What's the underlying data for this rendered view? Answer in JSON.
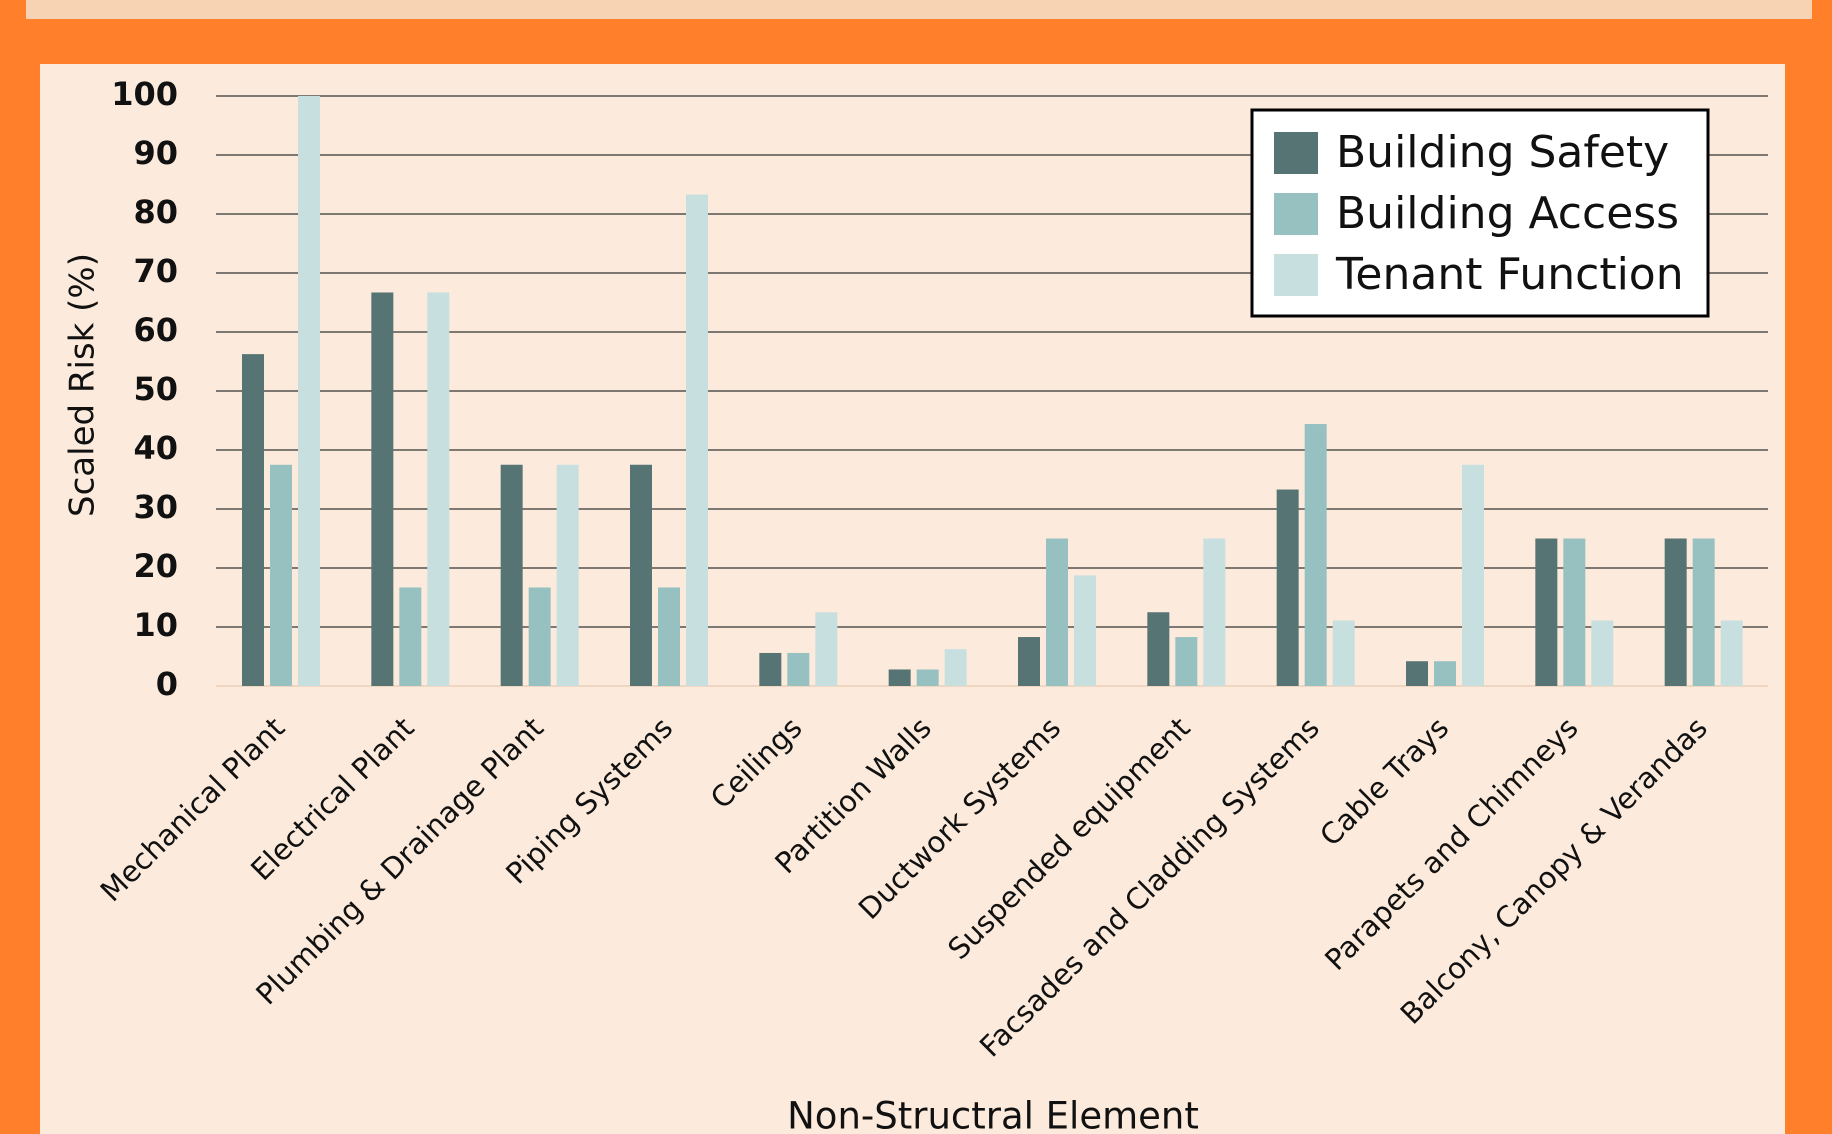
{
  "chart_data": {
    "type": "bar",
    "x_label": "Non-Structral Element",
    "y_label": "Scaled Risk (%)",
    "categories": [
      "Mechanical Plant",
      "Electrical Plant",
      "Plumbing & Drainage Plant",
      "Piping Systems",
      "Ceilings",
      "Partition Walls",
      "Ductwork Systems",
      "Suspended equipment",
      "Facsades and Cladding Systems",
      "Cable Trays",
      "Parapets and Chimneys",
      "Balcony, Canopy & Verandas"
    ],
    "series": [
      {
        "name": "Building Safety",
        "color": "#577474",
        "values": [
          56.25,
          66.7,
          37.5,
          37.5,
          5.6,
          2.8,
          8.3,
          12.5,
          33.3,
          4.2,
          25,
          25
        ]
      },
      {
        "name": "Building Access",
        "color": "#97c1c1",
        "values": [
          37.5,
          16.7,
          16.7,
          16.7,
          5.6,
          2.8,
          25,
          8.3,
          44.4,
          4.2,
          25,
          25
        ]
      },
      {
        "name": "Tenant Function",
        "color": "#c8dfdf",
        "values": [
          100,
          66.7,
          37.5,
          83.3,
          12.5,
          6.25,
          18.75,
          25,
          11.1,
          37.5,
          11.1,
          11.1
        ]
      }
    ],
    "ylim": [
      0,
      100
    ],
    "yticks": [
      0,
      10,
      20,
      30,
      40,
      50,
      60,
      70,
      80,
      90,
      100
    ],
    "grid": true,
    "legend": "upper right"
  }
}
